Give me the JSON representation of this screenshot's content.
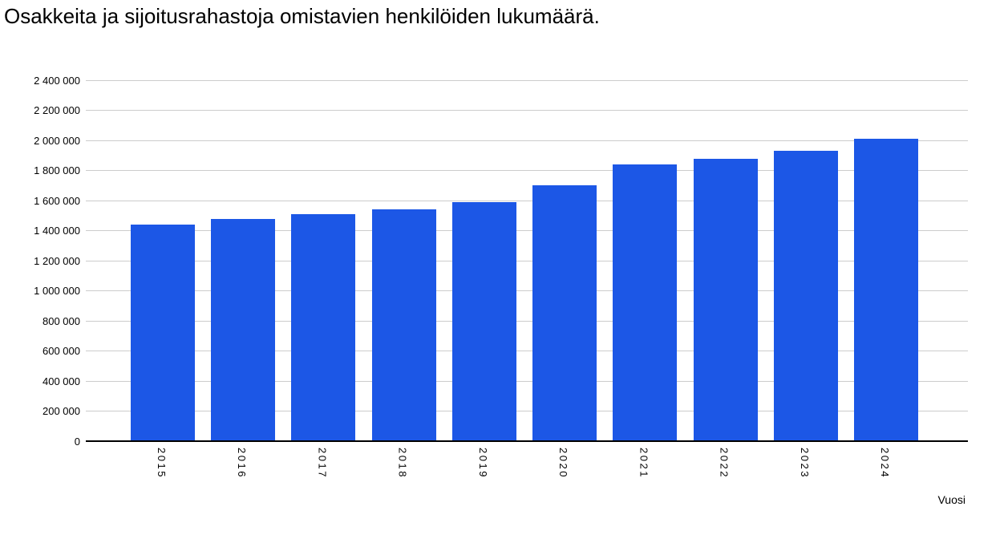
{
  "title": "Osakkeita ja sijoitusrahastoja omistavien henkilöiden lukumäärä.",
  "chart_data": {
    "type": "bar",
    "title": "Osakkeita ja sijoitusrahastoja omistavien henkilöiden lukumäärä.",
    "xlabel": "Vuosi",
    "ylabel": "",
    "categories": [
      "2015",
      "2016",
      "2017",
      "2018",
      "2019",
      "2020",
      "2021",
      "2022",
      "2023",
      "2024"
    ],
    "values": [
      1440000,
      1480000,
      1510000,
      1540000,
      1590000,
      1700000,
      1840000,
      1880000,
      1930000,
      2010000
    ],
    "ylim": [
      0,
      2400000
    ],
    "y_tick_step": 200000,
    "y_ticks": [
      {
        "v": 0,
        "label": "0"
      },
      {
        "v": 200000,
        "label": "200 000"
      },
      {
        "v": 400000,
        "label": "400 000"
      },
      {
        "v": 600000,
        "label": "600 000"
      },
      {
        "v": 800000,
        "label": "800 000"
      },
      {
        "v": 1000000,
        "label": "1 000 000"
      },
      {
        "v": 1200000,
        "label": "1 200 000"
      },
      {
        "v": 1400000,
        "label": "1 400 000"
      },
      {
        "v": 1600000,
        "label": "1 600 000"
      },
      {
        "v": 1800000,
        "label": "1 800 000"
      },
      {
        "v": 2000000,
        "label": "2 000 000"
      },
      {
        "v": 2200000,
        "label": "2 200 000"
      },
      {
        "v": 2400000,
        "label": "2 400 000"
      }
    ],
    "grid": true,
    "legend": "none",
    "colors": {
      "bar": "#1C57E6",
      "gridline": "#cccccc",
      "axis": "#000000",
      "text": "#000000",
      "background": "#ffffff"
    }
  }
}
